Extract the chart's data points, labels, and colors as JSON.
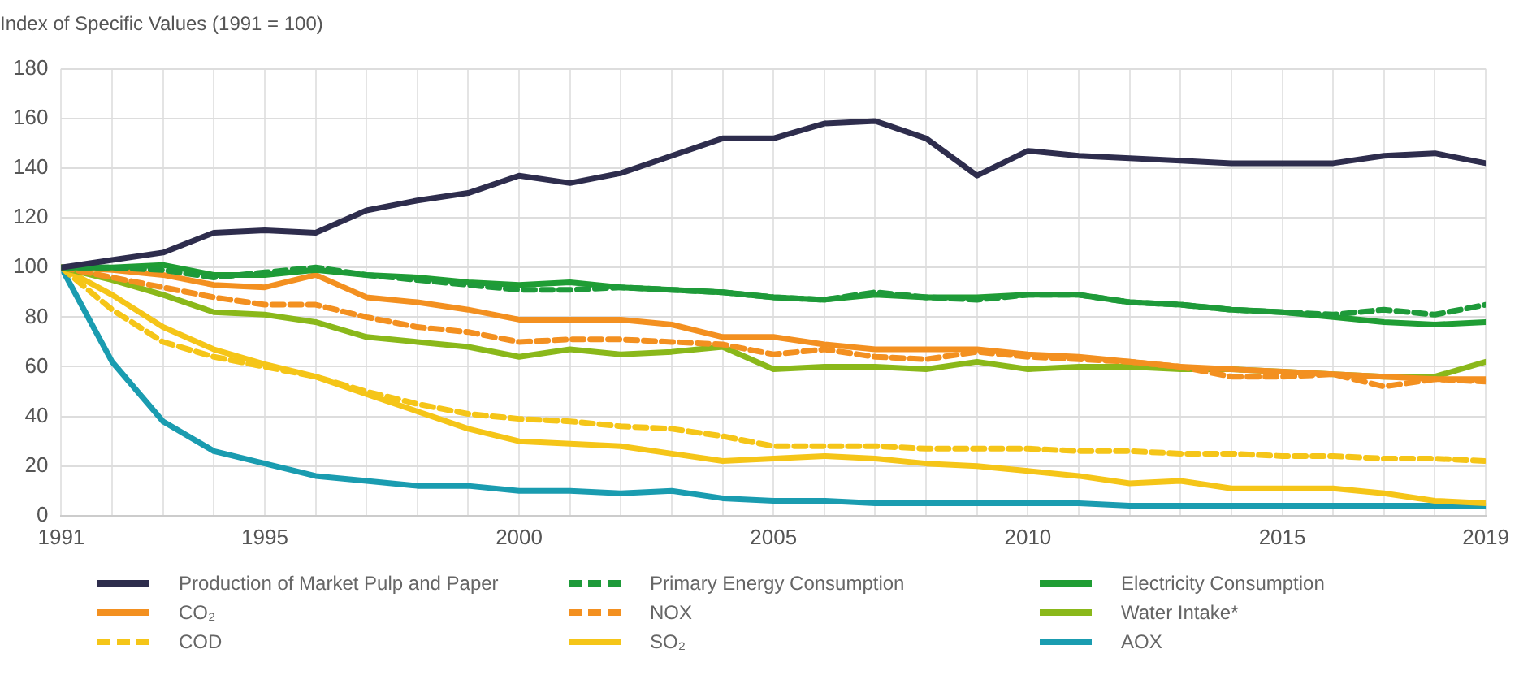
{
  "chart_data": {
    "type": "line",
    "title": "Index of Specific Values (1991 = 100)",
    "x": [
      1991,
      1992,
      1993,
      1994,
      1995,
      1996,
      1997,
      1998,
      1999,
      2000,
      2001,
      2002,
      2003,
      2004,
      2005,
      2006,
      2007,
      2008,
      2009,
      2010,
      2011,
      2012,
      2013,
      2014,
      2015,
      2016,
      2017,
      2018,
      2019
    ],
    "series": [
      {
        "name": "Production of Market Pulp and Paper",
        "color": "#2e2d4d",
        "values": [
          100,
          103,
          106,
          114,
          115,
          114,
          123,
          127,
          130,
          137,
          134,
          138,
          145,
          152,
          152,
          158,
          159,
          152,
          137,
          147,
          145,
          144,
          143,
          142,
          142,
          142,
          145,
          146,
          142
        ]
      },
      {
        "name": "Primary Energy Consumption",
        "color": "#1e9a3a",
        "line_style": "dashed",
        "values": [
          100,
          100,
          99,
          96,
          98,
          100,
          97,
          95,
          93,
          91,
          91,
          92,
          91,
          90,
          88,
          87,
          90,
          88,
          87,
          89,
          89,
          86,
          85,
          83,
          82,
          81,
          83,
          81,
          85
        ]
      },
      {
        "name": "Electricity Consumption",
        "color": "#1f9d34",
        "values": [
          100,
          100,
          101,
          97,
          97,
          99,
          97,
          96,
          94,
          93,
          94,
          92,
          91,
          90,
          88,
          87,
          89,
          88,
          88,
          89,
          89,
          86,
          85,
          83,
          82,
          80,
          78,
          77,
          78
        ]
      },
      {
        "name": "CO₂",
        "color": "#f39020",
        "values": [
          100,
          99,
          97,
          93,
          92,
          97,
          88,
          86,
          83,
          79,
          79,
          79,
          77,
          72,
          72,
          69,
          67,
          67,
          67,
          65,
          64,
          62,
          60,
          59,
          58,
          57,
          56,
          55,
          55
        ]
      },
      {
        "name": "NOX",
        "color": "#f39020",
        "line_style": "dashed",
        "values": [
          100,
          96,
          92,
          88,
          85,
          85,
          80,
          76,
          74,
          70,
          71,
          71,
          70,
          69,
          65,
          67,
          64,
          63,
          66,
          64,
          63,
          62,
          60,
          56,
          56,
          57,
          52,
          55,
          54
        ]
      },
      {
        "name": "Water Intake*",
        "color": "#8ab81a",
        "values": [
          100,
          95,
          89,
          82,
          81,
          78,
          72,
          70,
          68,
          64,
          67,
          65,
          66,
          68,
          59,
          60,
          60,
          59,
          62,
          59,
          60,
          60,
          59,
          59,
          58,
          57,
          56,
          56,
          62
        ]
      },
      {
        "name": "COD",
        "color": "#f5c518",
        "line_style": "dashed",
        "values": [
          100,
          83,
          70,
          64,
          60,
          56,
          50,
          45,
          41,
          39,
          38,
          36,
          35,
          32,
          28,
          28,
          28,
          27,
          27,
          27,
          26,
          26,
          25,
          25,
          24,
          24,
          23,
          23,
          22
        ]
      },
      {
        "name": "SO₂",
        "color": "#f5c518",
        "values": [
          100,
          89,
          76,
          67,
          61,
          56,
          49,
          42,
          35,
          30,
          29,
          28,
          25,
          22,
          23,
          24,
          23,
          21,
          20,
          18,
          16,
          13,
          14,
          11,
          11,
          11,
          9,
          6,
          5
        ]
      },
      {
        "name": "AOX",
        "color": "#1a9cb0",
        "values": [
          100,
          62,
          38,
          26,
          21,
          16,
          14,
          12,
          12,
          10,
          10,
          9,
          10,
          7,
          6,
          6,
          5,
          5,
          5,
          5,
          5,
          4,
          4,
          4,
          4,
          4,
          4,
          4,
          4
        ]
      }
    ],
    "xlim": [
      1991,
      2019
    ],
    "xticks": [
      1991,
      {
        "value": 1992,
        "label": null
      },
      {
        "value": 1993,
        "label": null
      },
      {
        "value": 1994,
        "label": null
      },
      1995,
      {
        "value": 1996,
        "label": null
      },
      {
        "value": 1997,
        "label": null
      },
      {
        "value": 1998,
        "label": null
      },
      {
        "value": 1999,
        "label": null
      },
      2000,
      {
        "value": 2001,
        "label": null
      },
      {
        "value": 2002,
        "label": null
      },
      {
        "value": 2003,
        "label": null
      },
      {
        "value": 2004,
        "label": null
      },
      2005,
      {
        "value": 2006,
        "label": null
      },
      {
        "value": 2007,
        "label": null
      },
      {
        "value": 2008,
        "label": null
      },
      {
        "value": 2009,
        "label": null
      },
      2010,
      {
        "value": 2011,
        "label": null
      },
      {
        "value": 2012,
        "label": null
      },
      {
        "value": 2013,
        "label": null
      },
      {
        "value": 2014,
        "label": null
      },
      2015,
      {
        "value": 2016,
        "label": null
      },
      {
        "value": 2017,
        "label": null
      },
      {
        "value": 2018,
        "label": null
      },
      2019
    ],
    "ylim": [
      0,
      180
    ],
    "yticks": [
      0,
      20,
      40,
      60,
      80,
      100,
      120,
      140,
      160,
      180
    ],
    "grid": true,
    "legend": "bottom",
    "marker": "none",
    "line_style": "solid"
  }
}
